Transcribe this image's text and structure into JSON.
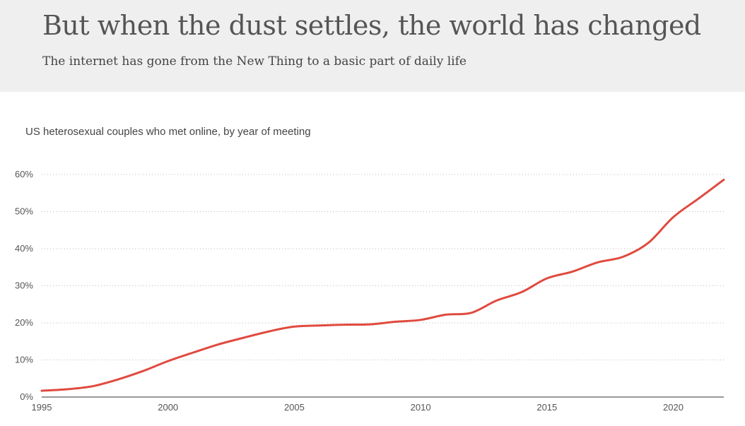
{
  "header": {
    "title": "But when the dust settles, the world has changed",
    "subtitle": "The internet has gone from the New Thing to a basic part of daily life"
  },
  "chart_data": {
    "type": "line",
    "title": "US heterosexual couples who met online, by year of meeting",
    "xlabel": "",
    "ylabel": "",
    "xlim": [
      1995,
      2022
    ],
    "ylim": [
      0,
      60
    ],
    "x_ticks": [
      1995,
      2000,
      2005,
      2010,
      2015,
      2020
    ],
    "y_ticks": [
      0,
      10,
      20,
      30,
      40,
      50,
      60
    ],
    "y_tick_suffix": "%",
    "grid": "horizontal-dotted",
    "line_color": "#e04a3f",
    "series": [
      {
        "x": [
          1995,
          1996,
          1997,
          1998,
          1999,
          2000,
          2001,
          2002,
          2003,
          2004,
          2005,
          2006,
          2007,
          2008,
          2009,
          2010,
          2011,
          2012,
          2013,
          2014,
          2015,
          2016,
          2017,
          2018,
          2019,
          2020,
          2021,
          2022
        ],
        "values": [
          1.7,
          2.1,
          2.9,
          4.7,
          7.0,
          9.7,
          12.0,
          14.2,
          16.0,
          17.7,
          19.0,
          19.3,
          19.5,
          19.6,
          20.3,
          20.8,
          22.2,
          22.7,
          26.0,
          28.3,
          32.0,
          33.8,
          36.3,
          37.8,
          41.5,
          48.5,
          53.5,
          58.6
        ]
      }
    ]
  }
}
